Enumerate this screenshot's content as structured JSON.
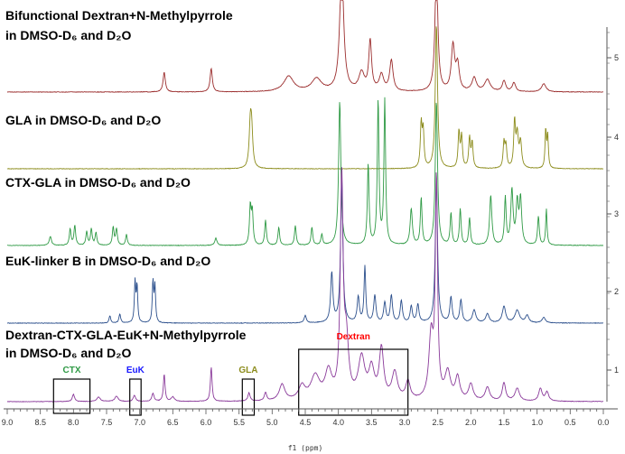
{
  "chart_data": {
    "type": "line",
    "title": "",
    "xlabel": "f1 (ppm)",
    "ylabel": "",
    "xlim": [
      9.0,
      0.0
    ],
    "x_ticks": [
      "9.0",
      "8.5",
      "8.0",
      "7.5",
      "7.0",
      "6.5",
      "6.0",
      "5.5",
      "5.0",
      "4.5",
      "4.0",
      "3.5",
      "3.0",
      "2.5",
      "2.0",
      "1.5",
      "1.0",
      "0.5",
      "0.0"
    ],
    "right_ticks": [
      "5",
      "4",
      "3",
      "2",
      "1"
    ],
    "grid": false,
    "series": [
      {
        "label_lines": [
          "Bifunctional Dextran+N-Methylpyrrole",
          "in DMSO-D₆ and D₂O"
        ],
        "color": "#9b2d2d",
        "peaks": [
          [
            6.63,
            22,
            0.02
          ],
          [
            5.92,
            26,
            0.02
          ],
          [
            4.75,
            17,
            0.09
          ],
          [
            4.33,
            14,
            0.09
          ],
          [
            3.95,
            140,
            0.035
          ],
          [
            3.65,
            20,
            0.05
          ],
          [
            3.52,
            55,
            0.025
          ],
          [
            3.35,
            18,
            0.04
          ],
          [
            3.2,
            34,
            0.03
          ],
          [
            2.52,
            140,
            0.025
          ],
          [
            2.27,
            50,
            0.03
          ],
          [
            2.2,
            28,
            0.03
          ],
          [
            1.95,
            15,
            0.04
          ],
          [
            1.75,
            13,
            0.05
          ],
          [
            1.5,
            12,
            0.03
          ],
          [
            1.35,
            10,
            0.03
          ],
          [
            0.9,
            9,
            0.04
          ]
        ]
      },
      {
        "label_lines": [
          "GLA in DMSO-D₆ and D₂O"
        ],
        "color": "#8c8c1c",
        "peaks": [
          [
            5.33,
            45,
            0.02
          ],
          [
            5.31,
            38,
            0.02
          ],
          [
            2.75,
            48,
            0.015
          ],
          [
            2.72,
            40,
            0.015
          ],
          [
            2.52,
            160,
            0.02
          ],
          [
            2.18,
            40,
            0.015
          ],
          [
            2.14,
            35,
            0.015
          ],
          [
            2.02,
            33,
            0.015
          ],
          [
            1.98,
            28,
            0.015
          ],
          [
            1.5,
            28,
            0.015
          ],
          [
            1.47,
            24,
            0.015
          ],
          [
            1.34,
            50,
            0.015
          ],
          [
            1.3,
            36,
            0.02
          ],
          [
            1.25,
            28,
            0.02
          ],
          [
            0.87,
            42,
            0.012
          ],
          [
            0.84,
            36,
            0.012
          ]
        ]
      },
      {
        "label_lines": [
          "CTX-GLA in DMSO-D₆ and D₂O"
        ],
        "color": "#2f9a45",
        "peaks": [
          [
            8.35,
            10,
            0.02
          ],
          [
            8.05,
            18,
            0.015
          ],
          [
            7.98,
            22,
            0.015
          ],
          [
            7.8,
            15,
            0.015
          ],
          [
            7.73,
            18,
            0.015
          ],
          [
            7.66,
            14,
            0.015
          ],
          [
            7.4,
            20,
            0.015
          ],
          [
            7.35,
            18,
            0.015
          ],
          [
            7.2,
            12,
            0.015
          ],
          [
            5.85,
            8,
            0.02
          ],
          [
            5.33,
            42,
            0.015
          ],
          [
            5.3,
            36,
            0.015
          ],
          [
            5.1,
            28,
            0.015
          ],
          [
            4.9,
            20,
            0.015
          ],
          [
            4.65,
            22,
            0.015
          ],
          [
            4.4,
            20,
            0.015
          ],
          [
            4.25,
            12,
            0.015
          ],
          [
            3.98,
            160,
            0.02
          ],
          [
            3.55,
            90,
            0.015
          ],
          [
            3.4,
            160,
            0.015
          ],
          [
            3.3,
            160,
            0.015
          ],
          [
            2.9,
            40,
            0.02
          ],
          [
            2.75,
            52,
            0.015
          ],
          [
            2.52,
            160,
            0.02
          ],
          [
            2.3,
            35,
            0.015
          ],
          [
            2.16,
            40,
            0.015
          ],
          [
            2.02,
            30,
            0.015
          ],
          [
            1.7,
            55,
            0.02
          ],
          [
            1.48,
            52,
            0.015
          ],
          [
            1.38,
            60,
            0.02
          ],
          [
            1.3,
            45,
            0.02
          ],
          [
            1.25,
            50,
            0.02
          ],
          [
            0.98,
            32,
            0.015
          ],
          [
            0.86,
            40,
            0.012
          ]
        ]
      },
      {
        "label_lines": [
          "EuK-linker B in DMSO-D₆ and D₂O"
        ],
        "color": "#2b4f8c",
        "peaks": [
          [
            7.45,
            8,
            0.015
          ],
          [
            7.3,
            10,
            0.015
          ],
          [
            7.07,
            45,
            0.012
          ],
          [
            7.04,
            40,
            0.012
          ],
          [
            6.8,
            45,
            0.012
          ],
          [
            6.77,
            40,
            0.012
          ],
          [
            4.5,
            8,
            0.02
          ],
          [
            4.1,
            55,
            0.02
          ],
          [
            3.95,
            160,
            0.02
          ],
          [
            3.7,
            28,
            0.02
          ],
          [
            3.6,
            62,
            0.015
          ],
          [
            3.45,
            30,
            0.02
          ],
          [
            3.3,
            22,
            0.02
          ],
          [
            3.2,
            30,
            0.02
          ],
          [
            3.05,
            24,
            0.02
          ],
          [
            2.9,
            18,
            0.02
          ],
          [
            2.8,
            20,
            0.02
          ],
          [
            2.52,
            160,
            0.02
          ],
          [
            2.3,
            28,
            0.02
          ],
          [
            2.15,
            25,
            0.02
          ],
          [
            1.95,
            14,
            0.03
          ],
          [
            1.75,
            10,
            0.03
          ],
          [
            1.5,
            18,
            0.03
          ],
          [
            1.3,
            14,
            0.04
          ],
          [
            1.15,
            8,
            0.03
          ],
          [
            0.9,
            6,
            0.03
          ]
        ]
      },
      {
        "label_lines": [
          "Dextran-CTX-GLA-EuK+N-Methylpyrrole",
          "in DMSO-D₆ and D₂O"
        ],
        "color": "#8a3a9a",
        "peaks": [
          [
            8.0,
            8,
            0.02
          ],
          [
            7.62,
            5,
            0.03
          ],
          [
            7.35,
            6,
            0.03
          ],
          [
            7.08,
            7,
            0.02
          ],
          [
            6.8,
            9,
            0.02
          ],
          [
            6.63,
            30,
            0.015
          ],
          [
            6.5,
            5,
            0.03
          ],
          [
            5.92,
            38,
            0.015
          ],
          [
            5.35,
            9,
            0.02
          ],
          [
            5.1,
            9,
            0.02
          ],
          [
            4.85,
            18,
            0.05
          ],
          [
            4.55,
            15,
            0.06
          ],
          [
            4.35,
            26,
            0.08
          ],
          [
            4.15,
            30,
            0.06
          ],
          [
            3.95,
            240,
            0.025
          ],
          [
            3.88,
            60,
            0.04
          ],
          [
            3.65,
            45,
            0.06
          ],
          [
            3.5,
            32,
            0.05
          ],
          [
            3.35,
            55,
            0.04
          ],
          [
            3.15,
            30,
            0.05
          ],
          [
            2.95,
            20,
            0.04
          ],
          [
            2.6,
            70,
            0.04
          ],
          [
            2.52,
            240,
            0.02
          ],
          [
            2.35,
            30,
            0.05
          ],
          [
            2.2,
            25,
            0.04
          ],
          [
            2.0,
            18,
            0.04
          ],
          [
            1.75,
            15,
            0.04
          ],
          [
            1.5,
            20,
            0.03
          ],
          [
            1.3,
            14,
            0.04
          ],
          [
            0.95,
            14,
            0.03
          ],
          [
            0.85,
            10,
            0.03
          ]
        ]
      }
    ],
    "annotations": [
      {
        "text": "Dextran",
        "color": "#ff0000",
        "x_from": 4.6,
        "x_to": 2.95
      },
      {
        "text": "CTX",
        "color": "#2f9a45",
        "x_from": 8.3,
        "x_to": 7.75
      },
      {
        "text": "EuK",
        "color": "#1a1aff",
        "x_from": 7.15,
        "x_to": 6.98
      },
      {
        "text": "GLA",
        "color": "#8c8c1c",
        "x_from": 5.45,
        "x_to": 5.27
      }
    ]
  }
}
